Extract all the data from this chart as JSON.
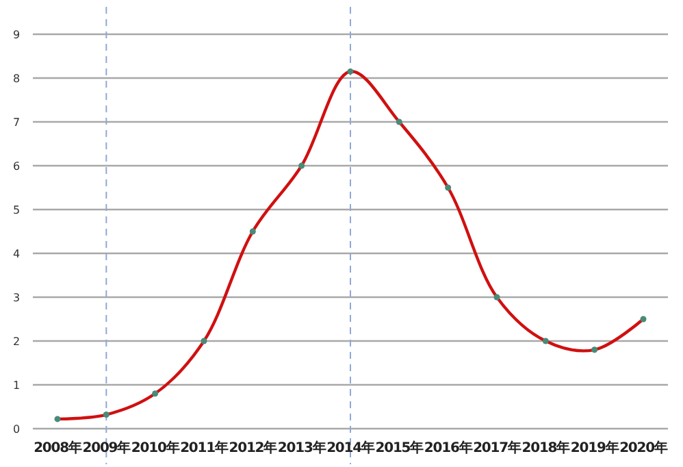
{
  "chart_data": {
    "type": "line",
    "categories": [
      "2008年",
      "2009年",
      "2010年",
      "2011年",
      "2012年",
      "2013年",
      "2014年",
      "2015年",
      "2016年",
      "2017年",
      "2018年",
      "2019年",
      "2020年"
    ],
    "series": [
      {
        "color": "#d01010",
        "values": [
          0.22,
          0.32,
          0.8,
          2.0,
          4.5,
          6.0,
          8.15,
          7.0,
          5.5,
          3.0,
          2.0,
          1.8,
          2.5
        ]
      }
    ],
    "ylim": [
      0,
      9
    ],
    "yticks": [
      0,
      1,
      2,
      3,
      4,
      5,
      6,
      7,
      8,
      9
    ],
    "grid": "y",
    "marker": "circle",
    "line_style": "solid",
    "ref_lines": [
      {
        "axis": "x",
        "value": "2009年",
        "color": "#8fa8d8",
        "line_style": "dashed"
      },
      {
        "axis": "x",
        "value": "2014年",
        "color": "#8fa8d8",
        "line_style": "dashed"
      }
    ]
  }
}
